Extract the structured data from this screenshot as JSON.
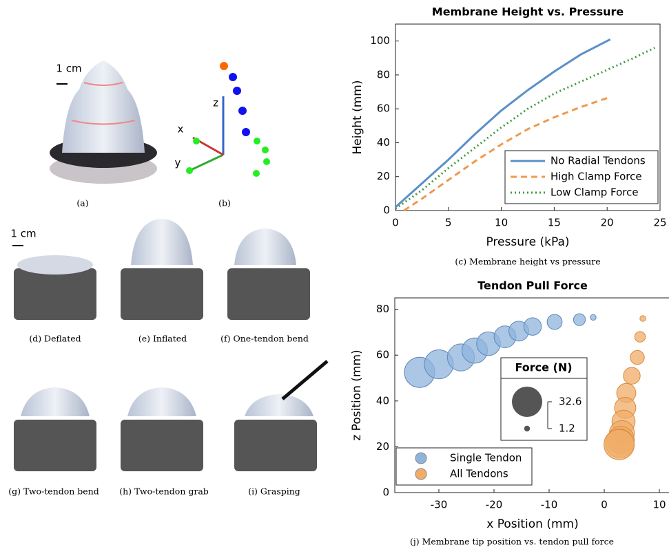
{
  "chart_data": [
    {
      "type": "line",
      "title": "Membrane Height vs. Pressure",
      "xlabel": "Pressure (kPa)",
      "ylabel": "Height (mm)",
      "caption": "(c) Membrane height vs pressure",
      "xlim": [
        0,
        25
      ],
      "ylim": [
        0,
        110
      ],
      "xticks": [
        0,
        5,
        10,
        15,
        20,
        25
      ],
      "yticks": [
        0,
        20,
        40,
        60,
        80,
        100
      ],
      "legend": "lower right",
      "series": [
        {
          "name": "No Radial Tendons",
          "color": "#5b8fc7",
          "style": "solid",
          "x": [
            0,
            2.5,
            5,
            7.5,
            10,
            12.5,
            15,
            17.5,
            20.3
          ],
          "values": [
            2,
            16,
            30,
            45,
            59,
            71,
            82,
            92,
            101
          ]
        },
        {
          "name": "High Clamp Force",
          "color": "#ee9a4d",
          "style": "dashed",
          "x": [
            0.8,
            2.5,
            5,
            7.5,
            10,
            12.5,
            15,
            17.5,
            20.3
          ],
          "values": [
            0,
            7,
            18,
            29,
            39,
            48,
            55,
            61,
            67
          ]
        },
        {
          "name": "Low Clamp Force",
          "color": "#3d9a3d",
          "style": "dotted",
          "x": [
            0,
            2.5,
            5,
            7.5,
            10,
            12.5,
            15,
            17.5,
            20,
            22.5,
            24.5
          ],
          "values": [
            1,
            12,
            25,
            37,
            49,
            60,
            69,
            76,
            83,
            90,
            96
          ]
        }
      ]
    },
    {
      "type": "scatter",
      "title": "Tendon Pull Force",
      "xlabel": "x Position (mm)",
      "ylabel": "z Position (mm)",
      "caption": "(j) Membrane tip position vs. tendon pull force",
      "xlim": [
        -38,
        12
      ],
      "ylim": [
        0,
        85
      ],
      "xticks": [
        -30,
        -20,
        -10,
        0,
        10
      ],
      "yticks": [
        0,
        20,
        40,
        60,
        80
      ],
      "legend": "lower left",
      "size_legend": {
        "title": "Force (N)",
        "values": [
          32.6,
          1.2
        ]
      },
      "series": [
        {
          "name": "Single Tendon",
          "color": "#8fb4dc",
          "x": [
            -33.5,
            -30,
            -26,
            -23.5,
            -21,
            -18,
            -15.5,
            -13,
            -9,
            -4.5,
            -2
          ],
          "values": [
            52.5,
            56,
            59,
            62,
            65,
            68,
            70.5,
            72.5,
            74.5,
            75.5,
            76.5
          ],
          "sizes": [
            32.6,
            30,
            26,
            23,
            20,
            17,
            14,
            11,
            8,
            5,
            1.2
          ]
        },
        {
          "name": "All Tendons",
          "color": "#f0ac68",
          "x": [
            7,
            6.5,
            6,
            5,
            4,
            3.8,
            3.5,
            3.2,
            3,
            2.8,
            2.7
          ],
          "values": [
            76,
            68,
            59,
            51,
            43.5,
            37,
            31,
            26,
            23,
            21.5,
            21
          ],
          "sizes": [
            1.2,
            4,
            7,
            10,
            13,
            16,
            19,
            22,
            26,
            29,
            32.6
          ]
        }
      ]
    }
  ],
  "panels": {
    "scale_top": "1 cm",
    "scale_mid": "1 cm",
    "axis_x": "x",
    "axis_y": "y",
    "axis_z": "z",
    "a": "(a)",
    "b": "(b)",
    "d": "(d) Deflated",
    "e": "(e) Inflated",
    "f": "(f) One-tendon bend",
    "g": "(g) Two-tendon bend",
    "h": "(h) Two-tendon grab",
    "i": "(i) Grasping"
  }
}
